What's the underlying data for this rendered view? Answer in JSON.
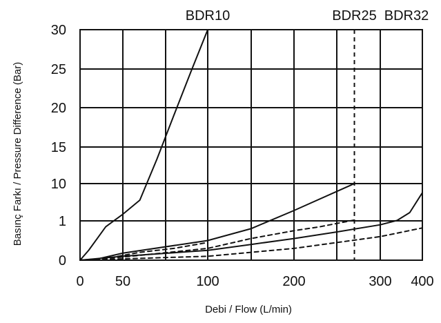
{
  "chart_data": {
    "type": "line",
    "xlabel": "Debi / Flow (L/min)",
    "ylabel": "Basınç Farkı /  Pressure Difference (Bar)",
    "x_ticks": [
      "0",
      "50",
      "100",
      "200",
      "300",
      "400"
    ],
    "y_ticks": [
      "0",
      "1",
      "10",
      "15",
      "20",
      "25",
      "30"
    ],
    "xlim": [
      0,
      400
    ],
    "ylim": [
      0,
      30
    ],
    "grid": true,
    "colors": {
      "line": "#111111",
      "grid": "#111111",
      "background": "#ffffff"
    },
    "top_labels": [
      {
        "text": "BDR10",
        "x": 100
      },
      {
        "text": "BDR25",
        "x": 270
      },
      {
        "text": "BDR32",
        "x": 400
      }
    ],
    "series": [
      {
        "name": "",
        "style": "solid",
        "points": [
          [
            0,
            0
          ],
          [
            10,
            0.25
          ],
          [
            20,
            0.55
          ],
          [
            30,
            0.85
          ],
          [
            40,
            1.1
          ],
          [
            50,
            2.6
          ],
          [
            60,
            6.0
          ],
          [
            70,
            13.3
          ],
          [
            80,
            19.0
          ],
          [
            90,
            24.6
          ],
          [
            100,
            30.0
          ]
        ]
      },
      {
        "name": "",
        "style": "solid",
        "points": [
          [
            0,
            0
          ],
          [
            20,
            0.03
          ],
          [
            50,
            0.18
          ],
          [
            100,
            0.5
          ],
          [
            150,
            0.8
          ],
          [
            200,
            3.5
          ],
          [
            270,
            10.0
          ]
        ]
      },
      {
        "name": "",
        "style": "solid",
        "points": [
          [
            0,
            0
          ],
          [
            50,
            0.1
          ],
          [
            100,
            0.25
          ],
          [
            150,
            0.4
          ],
          [
            200,
            0.55
          ],
          [
            250,
            0.72
          ],
          [
            300,
            0.9
          ],
          [
            340,
            1.1
          ],
          [
            370,
            3.0
          ],
          [
            400,
            7.8
          ]
        ]
      },
      {
        "name": "",
        "style": "dashed",
        "points": [
          [
            0,
            0
          ],
          [
            30,
            0.04
          ],
          [
            60,
            0.2
          ],
          [
            80,
            0.3
          ],
          [
            100,
            0.45
          ]
        ]
      },
      {
        "name": "",
        "style": "dashed",
        "points": [
          [
            0,
            0
          ],
          [
            50,
            0.08
          ],
          [
            100,
            0.3
          ],
          [
            150,
            0.55
          ],
          [
            200,
            0.75
          ],
          [
            230,
            0.85
          ],
          [
            270,
            1.2
          ]
        ]
      },
      {
        "name": "",
        "style": "dashed",
        "points": [
          [
            0,
            0
          ],
          [
            100,
            0.1
          ],
          [
            200,
            0.3
          ],
          [
            300,
            0.6
          ],
          [
            400,
            0.82
          ]
        ]
      }
    ],
    "vertical_dashed_lines": [
      100,
      270
    ]
  }
}
